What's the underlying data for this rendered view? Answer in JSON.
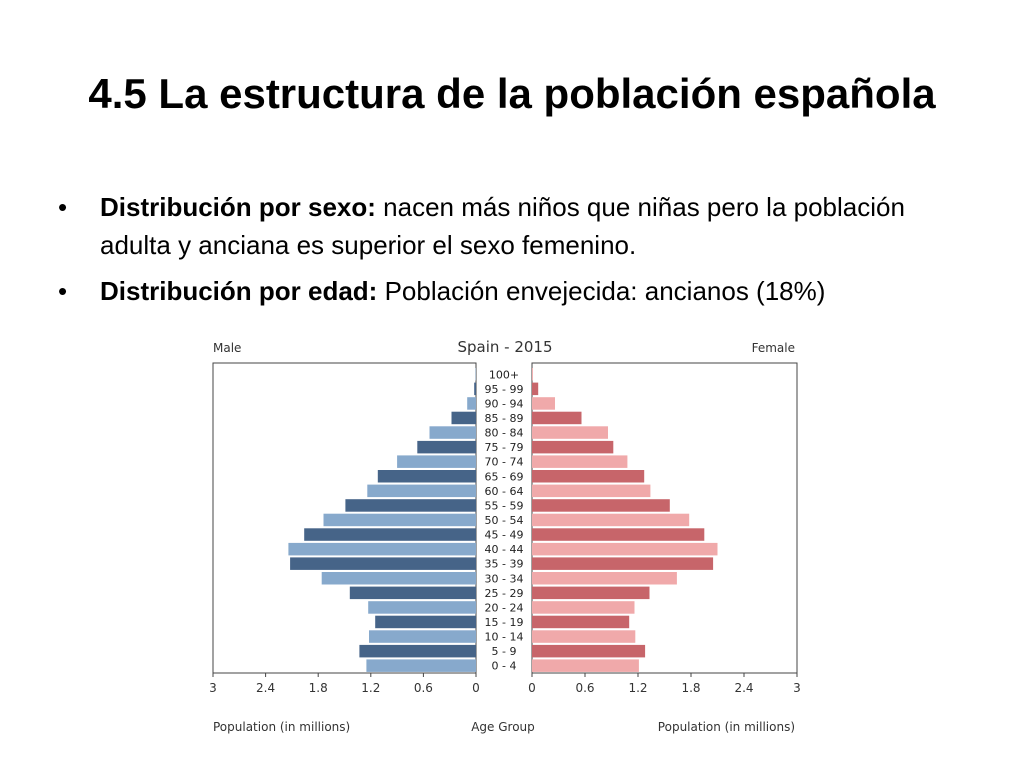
{
  "slide": {
    "title": "4.5 La estructura de la población española",
    "bullets": [
      {
        "bold": "Distribución por sexo:",
        "text": " nacen más niños que niñas pero la población adulta y anciana es superior el sexo femenino."
      },
      {
        "bold": "Distribución por edad:",
        "text": " Población envejecida: ancianos (18%)"
      }
    ],
    "bullet_symbol": "•"
  },
  "chart_data": {
    "type": "bar",
    "orientation": "horizontal",
    "subtype": "population-pyramid",
    "title": "Spain - 2015",
    "left_label": "Male",
    "right_label": "Female",
    "xlabel_left": "Population (in millions)",
    "xlabel_center": "Age Group",
    "xlabel_right": "Population (in millions)",
    "xlim": [
      0,
      3
    ],
    "xticks": [
      "3",
      "2.4",
      "1.8",
      "1.2",
      "0.6",
      "0",
      "0",
      "0.6",
      "1.2",
      "1.8",
      "2.4",
      "3"
    ],
    "categories": [
      "100+",
      "95 - 99",
      "90 - 94",
      "85 - 89",
      "80 - 84",
      "75 - 79",
      "70 - 74",
      "65 - 69",
      "60 - 64",
      "55 - 59",
      "50 - 54",
      "45 - 49",
      "40 - 44",
      "35 - 39",
      "30 - 34",
      "25 - 29",
      "20 - 24",
      "15 - 19",
      "10 - 14",
      "5 - 9",
      "0 - 4"
    ],
    "series": [
      {
        "name": "Male",
        "values": [
          0.005,
          0.02,
          0.1,
          0.28,
          0.53,
          0.67,
          0.9,
          1.12,
          1.24,
          1.49,
          1.74,
          1.96,
          2.14,
          2.12,
          1.76,
          1.44,
          1.23,
          1.15,
          1.22,
          1.33,
          1.25
        ],
        "colors": [
          "#466488",
          "#87a9cc"
        ]
      },
      {
        "name": "Female",
        "values": [
          0.01,
          0.07,
          0.26,
          0.56,
          0.86,
          0.92,
          1.08,
          1.27,
          1.34,
          1.56,
          1.78,
          1.95,
          2.1,
          2.05,
          1.64,
          1.33,
          1.16,
          1.1,
          1.17,
          1.28,
          1.21
        ],
        "colors": [
          "#c7656a",
          "#f0a9aa"
        ]
      }
    ]
  }
}
